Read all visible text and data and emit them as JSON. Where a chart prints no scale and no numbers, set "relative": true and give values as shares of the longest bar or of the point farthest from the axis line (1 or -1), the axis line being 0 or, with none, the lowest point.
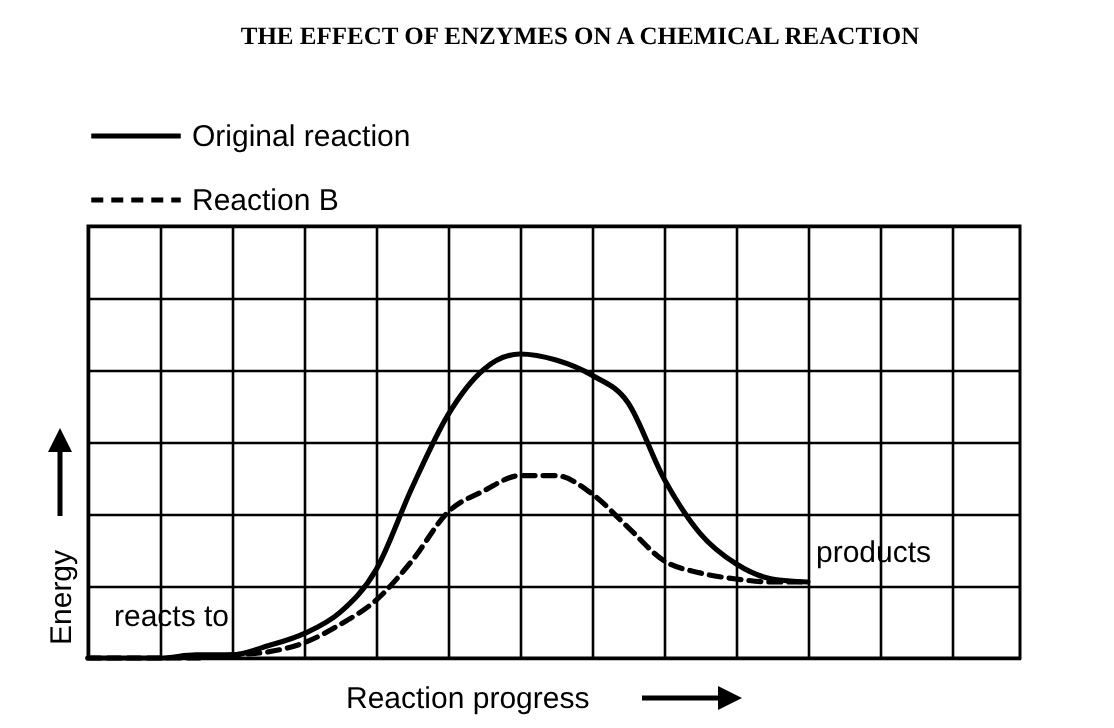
{
  "chart_data": {
    "type": "line",
    "title": "THE EFFECT OF ENZYMES ON A CHEMICAL REACTION",
    "xlabel": "Reaction progress",
    "ylabel": "Energy",
    "relative": true,
    "grid": true,
    "tick_labels": false,
    "legend": "top left",
    "marker": "none",
    "categories": [
      null,
      null,
      null,
      null,
      null,
      null,
      null,
      null,
      null,
      null,
      null,
      null,
      null,
      null,
      null,
      null,
      null,
      null,
      null,
      null,
      null
    ],
    "series": [
      {
        "name": "Original reaction",
        "color": "#000000",
        "line_style": "solid",
        "values": [
          0,
          0,
          0,
          0.01,
          0.01,
          0.04,
          0.08,
          0.15,
          0.29,
          0.56,
          0.8,
          0.95,
          1,
          0.98,
          0.93,
          0.84,
          0.59,
          0.41,
          0.31,
          0.26,
          0.25
        ]
      },
      {
        "name": "Reaction B",
        "color": "#000000",
        "line_style": "dashed",
        "values": [
          0,
          0,
          0,
          0,
          0.01,
          0.02,
          0.05,
          0.11,
          0.19,
          0.32,
          0.48,
          0.55,
          0.6,
          0.6,
          0.54,
          0.43,
          0.32,
          0.28,
          0.26,
          0.25,
          0.25
        ]
      }
    ],
    "annotations": [
      "reacts to",
      "products"
    ]
  }
}
